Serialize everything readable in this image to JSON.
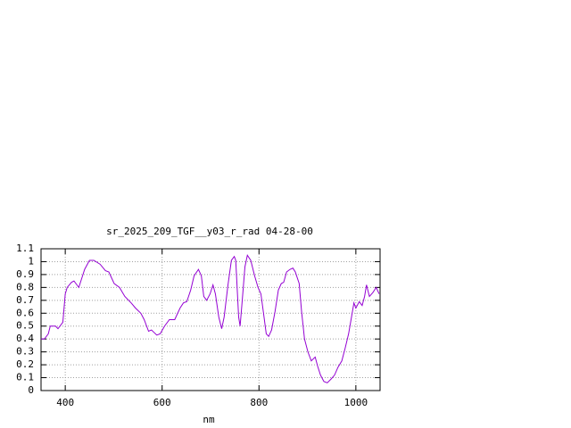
{
  "chart_data": {
    "type": "line",
    "title": "sr_2025_209_TGF__y03_r_rad 04-28-00",
    "xlabel": "nm",
    "xlim": [
      350,
      1050
    ],
    "xticks": [
      400,
      600,
      800,
      1000
    ],
    "ylim": [
      0,
      1.1
    ],
    "yticks": [
      0,
      0.1,
      0.2,
      0.3,
      0.4,
      0.5,
      0.6,
      0.7,
      0.8,
      0.9,
      1,
      1.1
    ],
    "grid": true,
    "series": [
      {
        "color": "#9400d3",
        "x": [
          350,
          357,
          365,
          369,
          380,
          385,
          395,
          400,
          404,
          413,
          418,
          428,
          440,
          450,
          459,
          472,
          483,
          490,
          501,
          512,
          523,
          536,
          545,
          556,
          563,
          572,
          578,
          589,
          596,
          605,
          615,
          626,
          637,
          644,
          651,
          659,
          666,
          675,
          681,
          686,
          692,
          699,
          705,
          710,
          717,
          723,
          728,
          736,
          743,
          749,
          752,
          758,
          761,
          765,
          771,
          776,
          783,
          791,
          798,
          804,
          809,
          815,
          820,
          826,
          833,
          840,
          846,
          851,
          857,
          864,
          870,
          875,
          883,
          888,
          894,
          901,
          908,
          916,
          921,
          927,
          934,
          941,
          949,
          956,
          963,
          971,
          978,
          985,
          991,
          996,
          1000,
          1007,
          1013,
          1018,
          1022,
          1028,
          1035,
          1042,
          1048
        ],
        "values": [
          0.4,
          0.4,
          0.44,
          0.5,
          0.5,
          0.48,
          0.53,
          0.75,
          0.8,
          0.84,
          0.85,
          0.8,
          0.94,
          1.01,
          1.01,
          0.98,
          0.93,
          0.92,
          0.83,
          0.8,
          0.73,
          0.68,
          0.64,
          0.6,
          0.55,
          0.46,
          0.47,
          0.43,
          0.44,
          0.5,
          0.55,
          0.55,
          0.64,
          0.68,
          0.69,
          0.78,
          0.89,
          0.94,
          0.89,
          0.73,
          0.7,
          0.75,
          0.82,
          0.75,
          0.57,
          0.48,
          0.57,
          0.82,
          1.01,
          1.04,
          1.01,
          0.57,
          0.5,
          0.68,
          0.96,
          1.05,
          1.01,
          0.89,
          0.8,
          0.75,
          0.61,
          0.44,
          0.42,
          0.47,
          0.61,
          0.78,
          0.83,
          0.84,
          0.92,
          0.94,
          0.95,
          0.92,
          0.83,
          0.61,
          0.4,
          0.3,
          0.23,
          0.26,
          0.19,
          0.12,
          0.07,
          0.06,
          0.09,
          0.12,
          0.18,
          0.23,
          0.33,
          0.44,
          0.57,
          0.68,
          0.64,
          0.69,
          0.66,
          0.73,
          0.82,
          0.73,
          0.76,
          0.8,
          0.75
        ]
      }
    ]
  }
}
